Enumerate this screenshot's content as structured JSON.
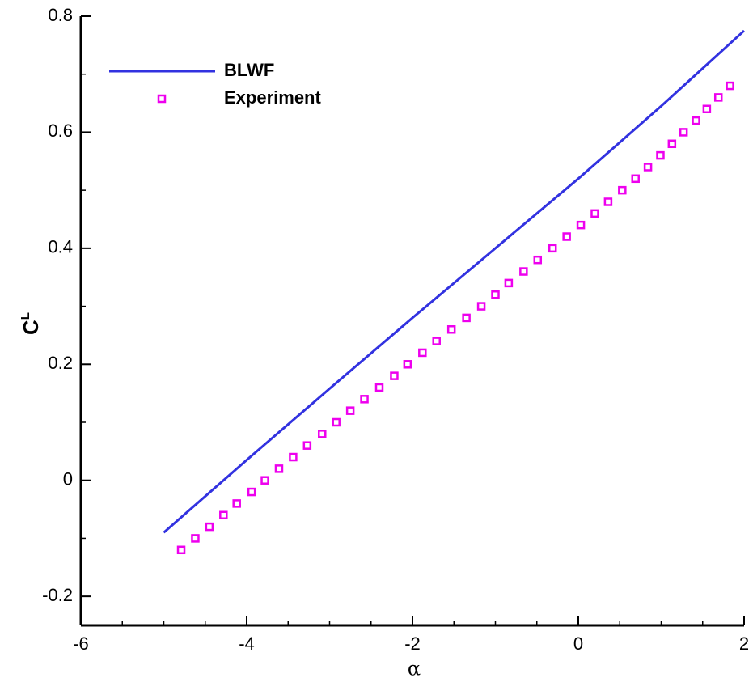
{
  "chart_data": {
    "type": "line",
    "x_label": "α",
    "y_label": "C",
    "y_label_sub": "L",
    "xlim": [
      -6,
      2
    ],
    "ylim": [
      -0.25,
      0.8
    ],
    "xticks": [
      -6,
      -4,
      -2,
      0,
      2
    ],
    "yticks": [
      -0.2,
      0,
      0.2,
      0.4,
      0.6,
      0.8
    ],
    "legend_position": "upper left",
    "series": [
      {
        "name": "BLWF",
        "style": "line",
        "color": "#3232e0",
        "x": [
          -5,
          -4,
          -3,
          -2,
          -1,
          0,
          1,
          2
        ],
        "values": [
          -0.09,
          0.035,
          0.158,
          0.28,
          0.4,
          0.52,
          0.645,
          0.775
        ]
      },
      {
        "name": "Experiment",
        "style": "marker",
        "color": "#ee00ee",
        "x": [
          -4.79,
          -4.62,
          -4.45,
          -4.28,
          -4.12,
          -3.94,
          -3.78,
          -3.61,
          -3.44,
          -3.27,
          -3.09,
          -2.92,
          -2.75,
          -2.58,
          -2.4,
          -2.22,
          -2.06,
          -1.88,
          -1.71,
          -1.53,
          -1.35,
          -1.17,
          -1.0,
          -0.84,
          -0.66,
          -0.49,
          -0.31,
          -0.14,
          0.03,
          0.2,
          0.36,
          0.53,
          0.69,
          0.84,
          0.99,
          1.13,
          1.27,
          1.42,
          1.55,
          1.69,
          1.83
        ],
        "values": [
          -0.12,
          -0.1,
          -0.08,
          -0.06,
          -0.04,
          -0.02,
          0,
          0.02,
          0.04,
          0.06,
          0.08,
          0.1,
          0.12,
          0.14,
          0.16,
          0.18,
          0.2,
          0.22,
          0.24,
          0.26,
          0.28,
          0.3,
          0.32,
          0.34,
          0.36,
          0.38,
          0.4,
          0.42,
          0.44,
          0.46,
          0.48,
          0.5,
          0.52,
          0.54,
          0.56,
          0.58,
          0.6,
          0.62,
          0.64,
          0.66,
          0.68
        ]
      }
    ]
  }
}
